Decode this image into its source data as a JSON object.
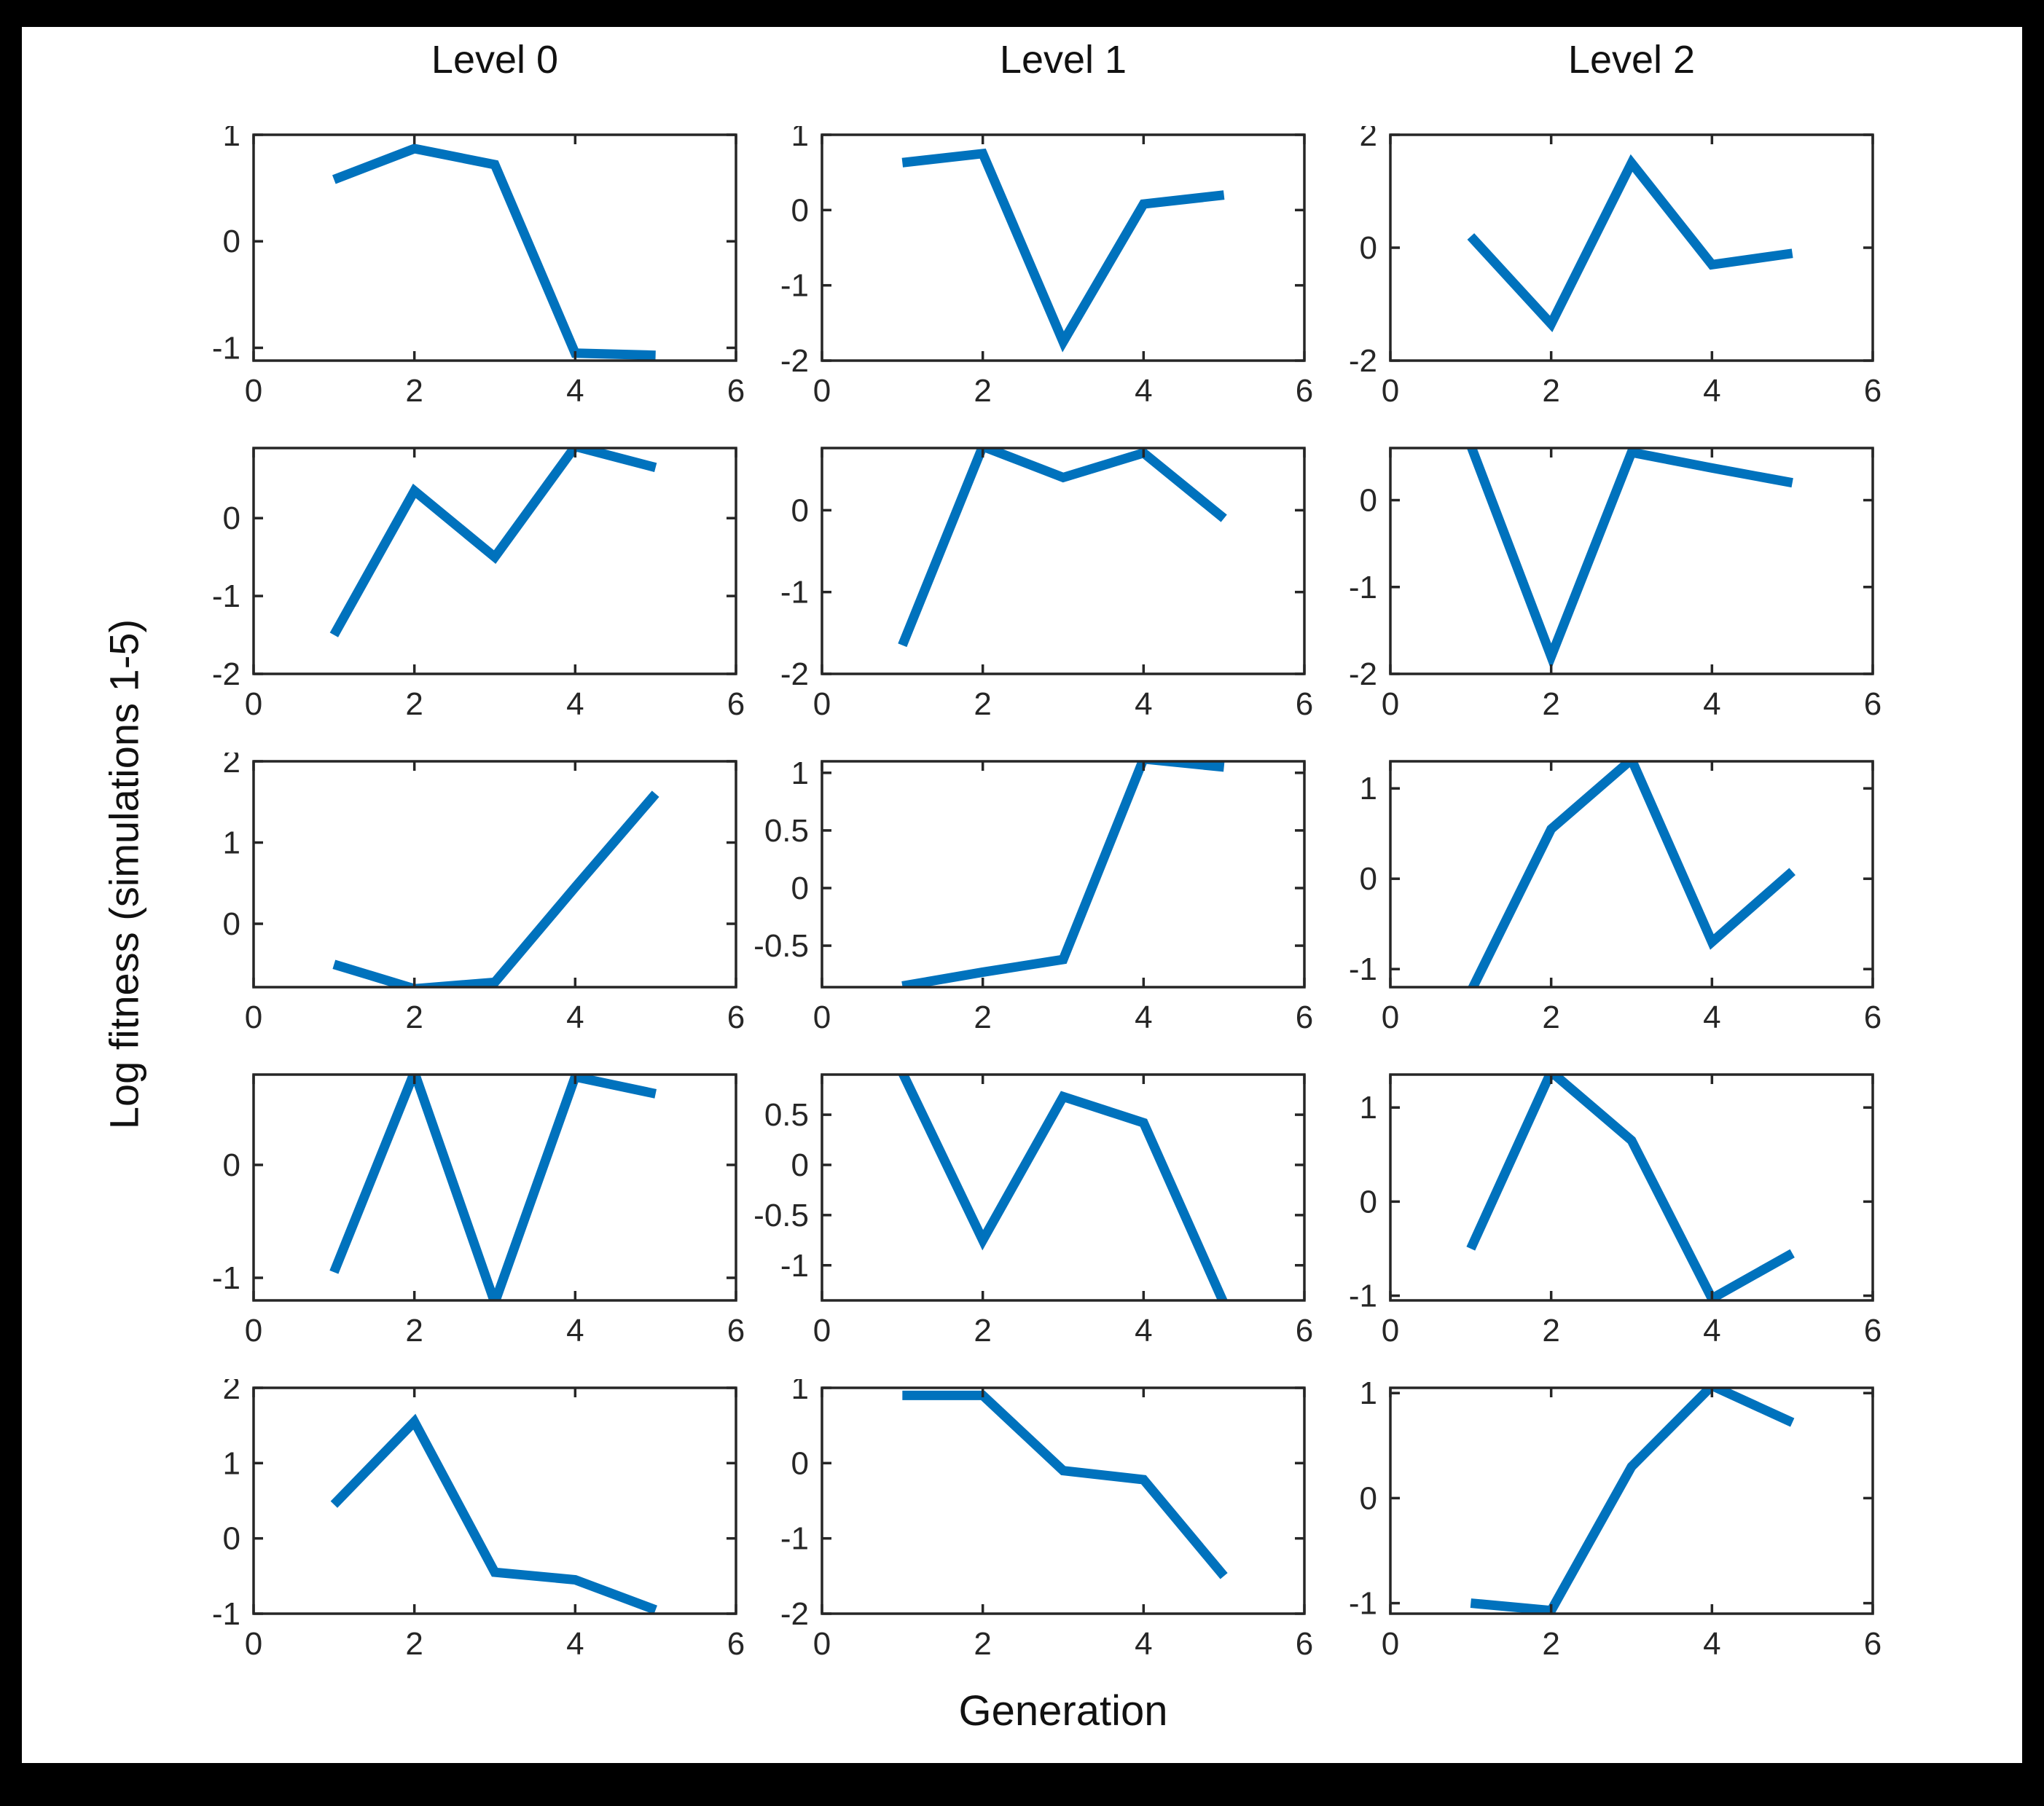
{
  "figure": {
    "column_titles": [
      "Level 0",
      "Level 1",
      "Level 2"
    ],
    "ylabel": "Log fitness (simulations 1-5)",
    "xlabel": "Generation",
    "line_color": "#0072BD",
    "axis_color": "#262626",
    "page_background": "#000000",
    "figure_background": "#ffffff"
  },
  "chart_data": [
    {
      "type": "line",
      "level": 0,
      "simulation": 1,
      "x": [
        1,
        2,
        3,
        4,
        5
      ],
      "y": [
        0.58,
        0.87,
        0.72,
        -1.05,
        -1.07
      ],
      "xlim": [
        0,
        6
      ],
      "ylim": [
        -1.12,
        1.0
      ],
      "xticks": [
        0,
        2,
        4,
        6
      ],
      "yticks": [
        1,
        0,
        -1
      ]
    },
    {
      "type": "line",
      "level": 1,
      "simulation": 1,
      "x": [
        1,
        2,
        3,
        4,
        5
      ],
      "y": [
        0.63,
        0.75,
        -1.75,
        0.08,
        0.2
      ],
      "xlim": [
        0,
        6
      ],
      "ylim": [
        -2,
        1
      ],
      "xticks": [
        0,
        2,
        4,
        6
      ],
      "yticks": [
        1,
        0,
        -1,
        -2
      ]
    },
    {
      "type": "line",
      "level": 2,
      "simulation": 1,
      "x": [
        1,
        2,
        3,
        4,
        5
      ],
      "y": [
        0.2,
        -1.35,
        1.5,
        -0.3,
        -0.1
      ],
      "xlim": [
        0,
        6
      ],
      "ylim": [
        -2,
        2
      ],
      "xticks": [
        0,
        2,
        4,
        6
      ],
      "yticks": [
        2,
        0,
        -2
      ]
    },
    {
      "type": "line",
      "level": 0,
      "simulation": 2,
      "x": [
        1,
        2,
        3,
        4,
        5
      ],
      "y": [
        -1.5,
        0.35,
        -0.5,
        0.92,
        0.65
      ],
      "xlim": [
        0,
        6
      ],
      "ylim": [
        -2,
        0.9
      ],
      "xticks": [
        0,
        2,
        4,
        6
      ],
      "yticks": [
        0,
        -1,
        -2
      ]
    },
    {
      "type": "line",
      "level": 1,
      "simulation": 2,
      "x": [
        1,
        2,
        3,
        4,
        5
      ],
      "y": [
        -1.65,
        0.78,
        0.4,
        0.7,
        -0.1
      ],
      "xlim": [
        0,
        6
      ],
      "ylim": [
        -2,
        0.76
      ],
      "xticks": [
        0,
        2,
        4,
        6
      ],
      "yticks": [
        0,
        -1,
        -2
      ]
    },
    {
      "type": "line",
      "level": 2,
      "simulation": 2,
      "x": [
        1,
        2,
        3,
        4,
        5
      ],
      "y": [
        0.63,
        -1.8,
        0.55,
        0.37,
        0.2
      ],
      "xlim": [
        0,
        6
      ],
      "ylim": [
        -2,
        0.6
      ],
      "xticks": [
        0,
        2,
        4,
        6
      ],
      "yticks": [
        0,
        -1,
        -2
      ]
    },
    {
      "type": "line",
      "level": 0,
      "simulation": 3,
      "x": [
        1,
        2,
        3,
        4,
        5
      ],
      "y": [
        -0.5,
        -0.8,
        -0.72,
        0.45,
        1.6
      ],
      "xlim": [
        0,
        6
      ],
      "ylim": [
        -0.78,
        2
      ],
      "xticks": [
        0,
        2,
        4,
        6
      ],
      "yticks": [
        2,
        1,
        0
      ]
    },
    {
      "type": "line",
      "level": 1,
      "simulation": 3,
      "x": [
        1,
        2,
        3,
        4,
        5
      ],
      "y": [
        -0.85,
        -0.73,
        -0.62,
        1.12,
        1.05
      ],
      "xlim": [
        0,
        6
      ],
      "ylim": [
        -0.86,
        1.1
      ],
      "xticks": [
        0,
        2,
        4,
        6
      ],
      "yticks": [
        1,
        0.5,
        0,
        -0.5
      ]
    },
    {
      "type": "line",
      "level": 2,
      "simulation": 3,
      "x": [
        1,
        2,
        3,
        4,
        5
      ],
      "y": [
        -1.25,
        0.55,
        1.32,
        -0.7,
        0.08
      ],
      "xlim": [
        0,
        6
      ],
      "ylim": [
        -1.2,
        1.3
      ],
      "xticks": [
        0,
        2,
        4,
        6
      ],
      "yticks": [
        1,
        0,
        -1
      ]
    },
    {
      "type": "line",
      "level": 0,
      "simulation": 4,
      "x": [
        1,
        2,
        3,
        4,
        5
      ],
      "y": [
        -0.95,
        0.82,
        -1.22,
        0.78,
        0.63
      ],
      "xlim": [
        0,
        6
      ],
      "ylim": [
        -1.2,
        0.8
      ],
      "xticks": [
        0,
        2,
        4,
        6
      ],
      "yticks": [
        0,
        -1
      ]
    },
    {
      "type": "line",
      "level": 1,
      "simulation": 4,
      "x": [
        1,
        2,
        3,
        4,
        5
      ],
      "y": [
        0.92,
        -0.75,
        0.68,
        0.42,
        -1.38
      ],
      "xlim": [
        0,
        6
      ],
      "ylim": [
        -1.35,
        0.9
      ],
      "xticks": [
        0,
        2,
        4,
        6
      ],
      "yticks": [
        0.5,
        0,
        -0.5,
        -1
      ]
    },
    {
      "type": "line",
      "level": 2,
      "simulation": 4,
      "x": [
        1,
        2,
        3,
        4,
        5
      ],
      "y": [
        -0.5,
        1.38,
        0.65,
        -1.03,
        -0.55
      ],
      "xlim": [
        0,
        6
      ],
      "ylim": [
        -1.05,
        1.35
      ],
      "xticks": [
        0,
        2,
        4,
        6
      ],
      "yticks": [
        1,
        0,
        -1
      ]
    },
    {
      "type": "line",
      "level": 0,
      "simulation": 5,
      "x": [
        1,
        2,
        3,
        4,
        5
      ],
      "y": [
        0.45,
        1.55,
        -0.45,
        -0.55,
        -0.95
      ],
      "xlim": [
        0,
        6
      ],
      "ylim": [
        -1,
        2
      ],
      "xticks": [
        0,
        2,
        4,
        6
      ],
      "yticks": [
        2,
        1,
        0,
        -1
      ]
    },
    {
      "type": "line",
      "level": 1,
      "simulation": 5,
      "x": [
        1,
        2,
        3,
        4,
        5
      ],
      "y": [
        0.9,
        0.9,
        -0.1,
        -0.22,
        -1.5
      ],
      "xlim": [
        0,
        6
      ],
      "ylim": [
        -2,
        1
      ],
      "xticks": [
        0,
        2,
        4,
        6
      ],
      "yticks": [
        1,
        0,
        -1,
        -2
      ]
    },
    {
      "type": "line",
      "level": 2,
      "simulation": 5,
      "x": [
        1,
        2,
        3,
        4,
        5
      ],
      "y": [
        -1.0,
        -1.07,
        0.3,
        1.07,
        0.72
      ],
      "xlim": [
        0,
        6
      ],
      "ylim": [
        -1.1,
        1.05
      ],
      "xticks": [
        0,
        2,
        4,
        6
      ],
      "yticks": [
        1,
        0,
        -1
      ]
    }
  ]
}
